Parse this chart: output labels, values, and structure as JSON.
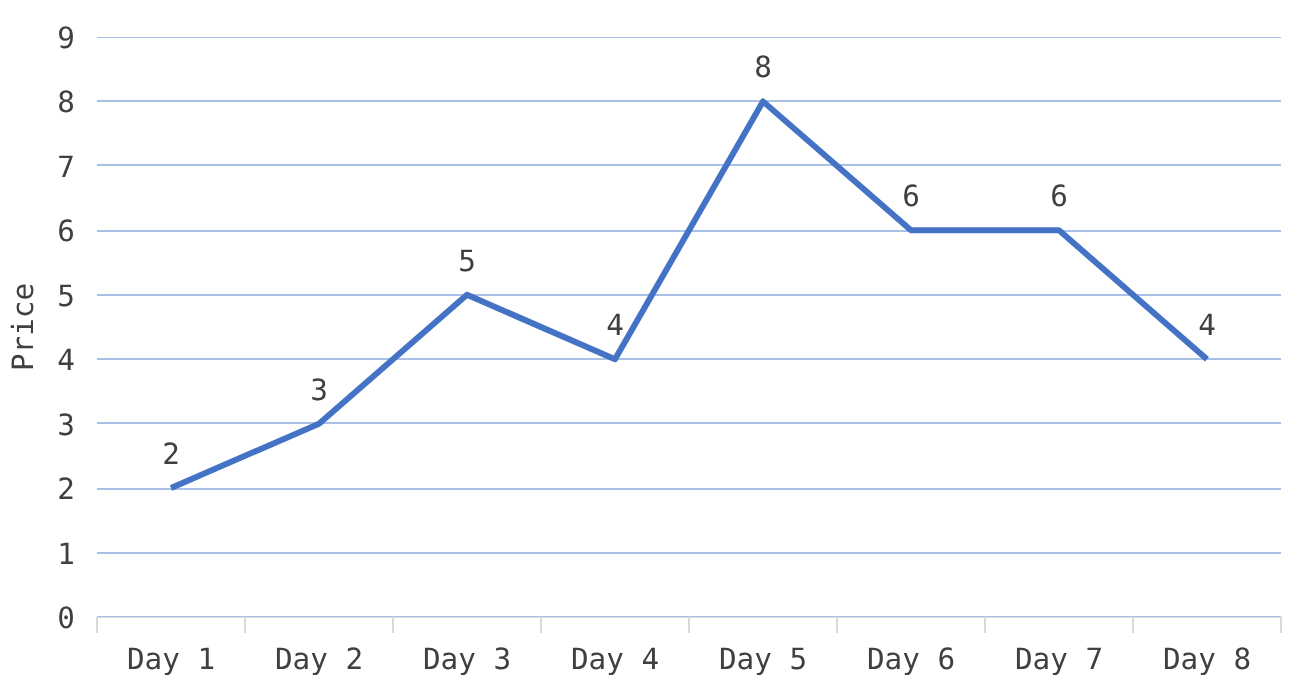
{
  "chart_data": {
    "type": "line",
    "ylabel": "Price",
    "categories": [
      "Day 1",
      "Day 2",
      "Day 3",
      "Day 4",
      "Day 5",
      "Day 6",
      "Day 7",
      "Day 8"
    ],
    "series": [
      {
        "color": "#4472c4",
        "values": [
          2,
          3,
          5,
          4,
          8,
          6,
          6,
          4
        ]
      }
    ],
    "ylim": [
      0,
      9
    ],
    "yticks": [
      0,
      1,
      2,
      3,
      4,
      5,
      6,
      7,
      8,
      9
    ],
    "grid": "y",
    "data_labels": true,
    "marker": "none",
    "line_style": "solid"
  }
}
